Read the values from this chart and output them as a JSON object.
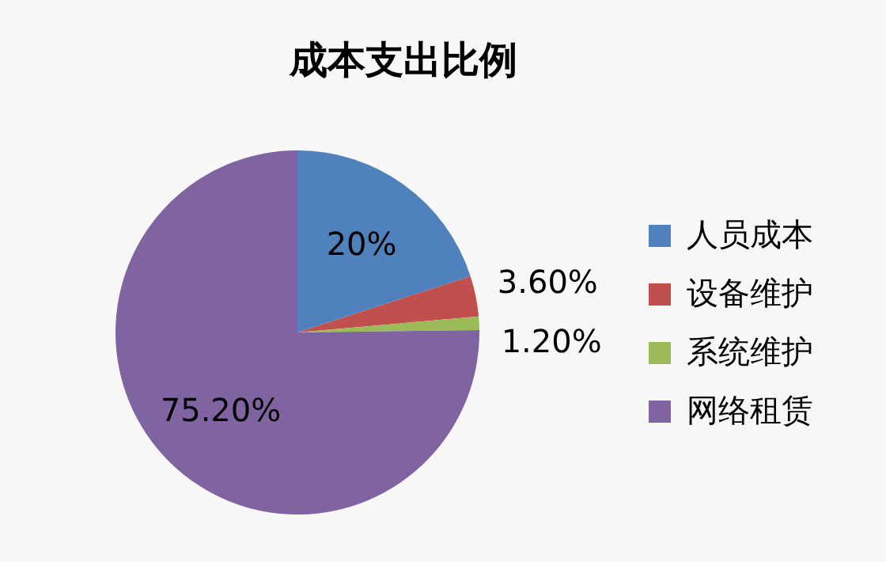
{
  "chart_data": {
    "type": "pie",
    "title": "成本支出比例",
    "categories": [
      "人员成本",
      "设备维护",
      "系统维护",
      "网络租赁"
    ],
    "values": [
      20,
      3.6,
      1.2,
      75.2
    ],
    "colors": [
      "#4f81bd",
      "#c0504d",
      "#9bbb59",
      "#8064a2"
    ],
    "value_labels": [
      "20%",
      "3.60%",
      "1.20%",
      "75.20%"
    ],
    "legend": "right"
  }
}
